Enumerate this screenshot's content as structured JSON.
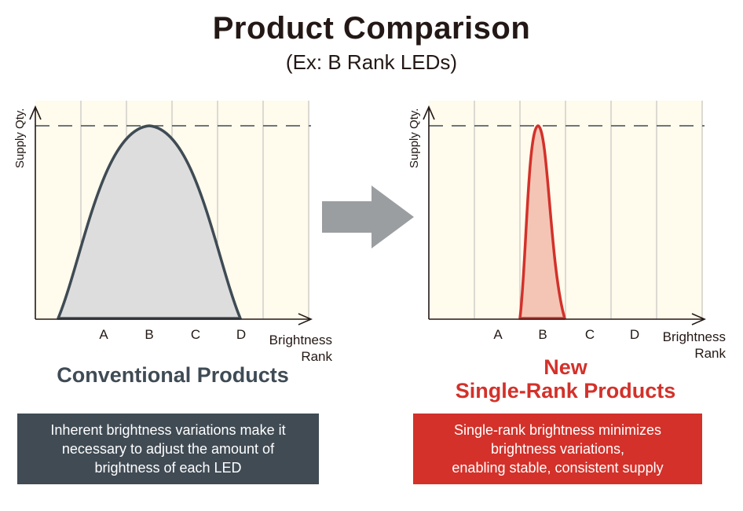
{
  "title": "Product Comparison",
  "subtitle": "(Ex: B Rank LEDs)",
  "arrow_icon": "right-arrow-icon",
  "colors": {
    "conventional": "#404b54",
    "new": "#d3312a",
    "plot_bg": "#fffbed",
    "conv_fill": "#dddddd",
    "new_fill": "#f4c5b5",
    "arrow": "#9a9ea1"
  },
  "left_chart": {
    "y_label": "Supply Qty.",
    "ranks": [
      "A",
      "B",
      "C",
      "D"
    ],
    "x_label_line1": "Brightness",
    "x_label_line2": "Rank",
    "heading": "Conventional Products",
    "description_lines": [
      "Inherent brightness variations make it",
      "necessary to adjust the amount of",
      "brightness of each LED"
    ]
  },
  "right_chart": {
    "y_label": "Supply Qty.",
    "ranks": [
      "A",
      "B",
      "C",
      "D"
    ],
    "x_label_line1": "Brightness",
    "x_label_line2": "Rank",
    "heading_line1": "New",
    "heading_line2": "Single-Rank Products",
    "description_lines": [
      "Single-rank brightness minimizes",
      "brightness variations,",
      "enabling stable, consistent supply"
    ]
  }
}
